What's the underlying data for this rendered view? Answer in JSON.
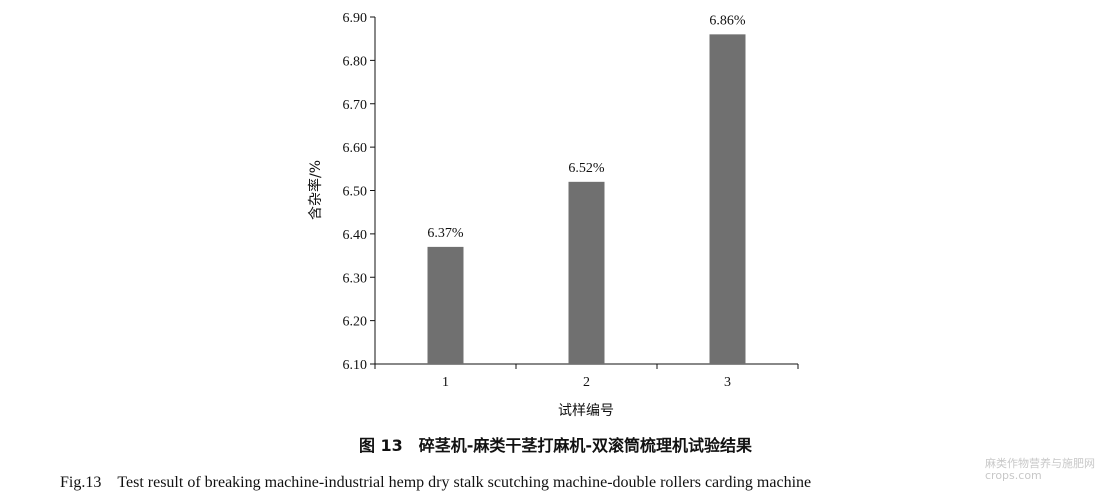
{
  "chart_data": {
    "type": "bar",
    "categories": [
      "1",
      "2",
      "3"
    ],
    "values": [
      6.37,
      6.52,
      6.86
    ],
    "data_labels": [
      "6.37%",
      "6.52%",
      "6.86%"
    ],
    "ylabel": "含杂率/%",
    "xlabel": "试样编号",
    "ylim": [
      6.1,
      6.9
    ],
    "yticks": [
      "6.10",
      "6.20",
      "6.30",
      "6.40",
      "6.50",
      "6.60",
      "6.70",
      "6.80",
      "6.90"
    ],
    "bar_color": "#707070",
    "grid": false,
    "legend": "none"
  },
  "caption": {
    "cn": "图 13　碎茎机-麻类干茎打麻机-双滚筒梳理机试验结果",
    "en": "Fig.13　Test result of breaking machine-industrial hemp dry stalk scutching machine-double rollers carding machine"
  },
  "watermark": {
    "line1": "麻类作物营养与施肥网",
    "line2": "crops.com"
  }
}
